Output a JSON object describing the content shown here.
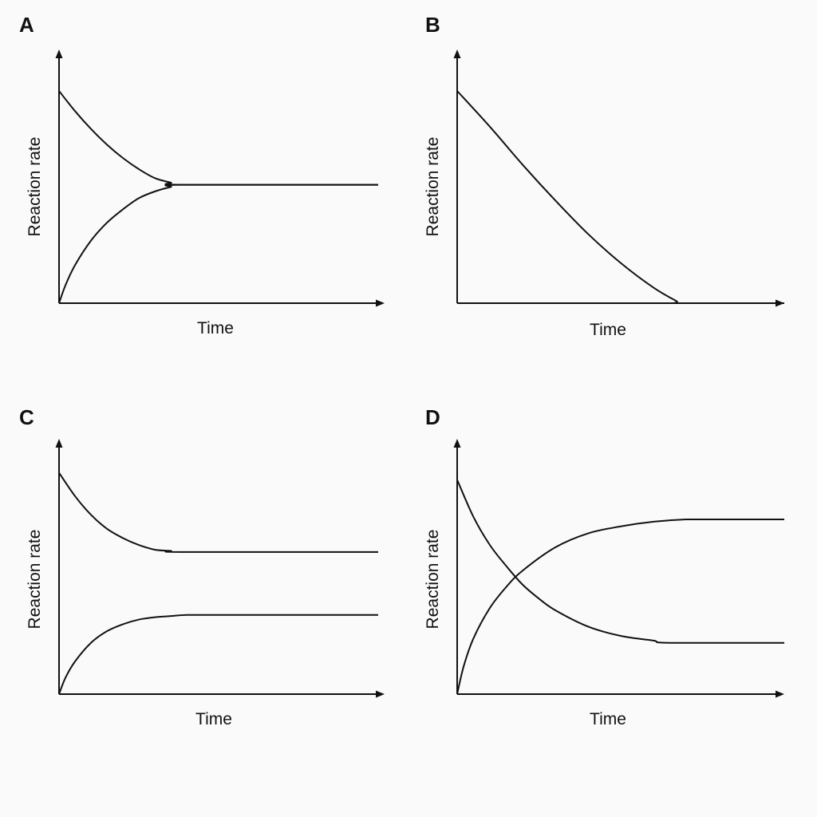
{
  "chart_data": [
    {
      "panel": "A",
      "type": "line",
      "xlabel": "Time",
      "ylabel": "Reaction rate",
      "xlim": [
        0,
        1
      ],
      "ylim": [
        0,
        1
      ],
      "grid": false,
      "series": [
        {
          "x": [
            0,
            0.05,
            0.1,
            0.15,
            0.2,
            0.25,
            0.3,
            0.35,
            0.39,
            1.0
          ],
          "y": [
            0.95,
            0.86,
            0.78,
            0.71,
            0.65,
            0.6,
            0.56,
            0.54,
            0.53,
            0.53
          ]
        },
        {
          "x": [
            0,
            0.02,
            0.05,
            0.1,
            0.15,
            0.2,
            0.25,
            0.3,
            0.35,
            0.39,
            1.0
          ],
          "y": [
            0,
            0.08,
            0.17,
            0.28,
            0.36,
            0.42,
            0.47,
            0.5,
            0.52,
            0.53,
            0.53
          ]
        }
      ]
    },
    {
      "panel": "B",
      "type": "line",
      "xlabel": "Time",
      "ylabel": "Reaction rate",
      "xlim": [
        0,
        1
      ],
      "ylim": [
        0,
        1
      ],
      "grid": false,
      "series": [
        {
          "x": [
            0,
            0.1,
            0.2,
            0.3,
            0.4,
            0.5,
            0.6,
            0.67,
            0.69,
            1.0
          ],
          "y": [
            0.95,
            0.79,
            0.62,
            0.46,
            0.31,
            0.18,
            0.07,
            0.01,
            0,
            0
          ]
        }
      ]
    },
    {
      "panel": "C",
      "type": "line",
      "xlabel": "Time",
      "ylabel": "Reaction rate",
      "xlim": [
        0,
        1
      ],
      "ylim": [
        0,
        1
      ],
      "grid": false,
      "series": [
        {
          "x": [
            0,
            0.05,
            0.1,
            0.15,
            0.2,
            0.25,
            0.3,
            0.35,
            0.39,
            1.0
          ],
          "y": [
            0.95,
            0.85,
            0.77,
            0.71,
            0.67,
            0.64,
            0.62,
            0.615,
            0.61,
            0.61
          ]
        },
        {
          "x": [
            0,
            0.02,
            0.05,
            0.1,
            0.15,
            0.2,
            0.25,
            0.3,
            0.35,
            0.4,
            0.5,
            1.0
          ],
          "y": [
            0,
            0.07,
            0.14,
            0.22,
            0.27,
            0.3,
            0.32,
            0.33,
            0.335,
            0.34,
            0.34,
            0.34
          ]
        }
      ]
    },
    {
      "panel": "D",
      "type": "line",
      "xlabel": "Time",
      "ylabel": "Reaction rate",
      "xlim": [
        0,
        1
      ],
      "ylim": [
        0,
        1
      ],
      "grid": false,
      "series": [
        {
          "x": [
            0,
            0.05,
            0.1,
            0.15,
            0.2,
            0.25,
            0.3,
            0.4,
            0.5,
            0.6,
            0.65,
            1.0
          ],
          "y": [
            0.92,
            0.76,
            0.64,
            0.55,
            0.47,
            0.41,
            0.36,
            0.29,
            0.25,
            0.23,
            0.22,
            0.22
          ]
        },
        {
          "x": [
            0,
            0.02,
            0.05,
            0.1,
            0.15,
            0.2,
            0.3,
            0.4,
            0.5,
            0.6,
            0.7,
            0.8,
            1.0
          ],
          "y": [
            0,
            0.12,
            0.24,
            0.37,
            0.46,
            0.53,
            0.63,
            0.69,
            0.72,
            0.74,
            0.75,
            0.75,
            0.75
          ]
        }
      ]
    }
  ]
}
